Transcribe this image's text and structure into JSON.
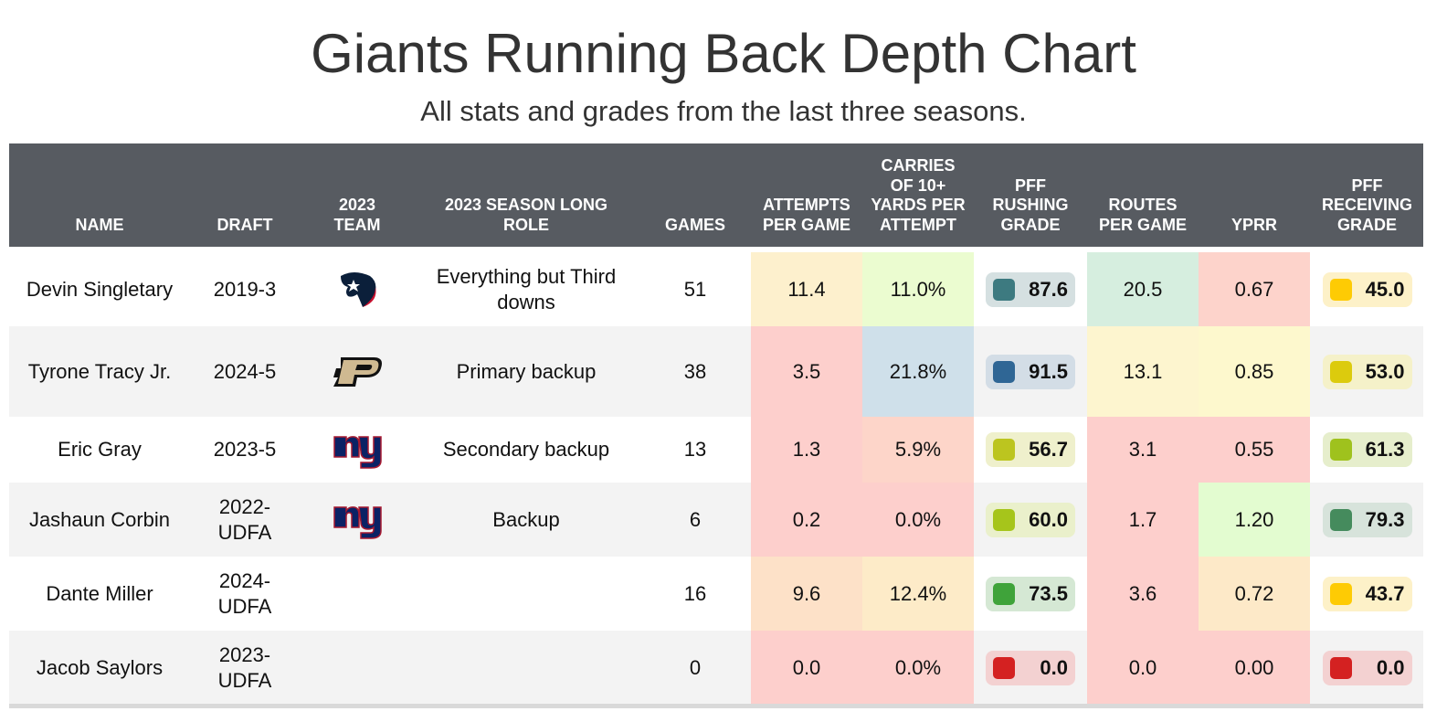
{
  "title": "Giants Running Back Depth Chart",
  "subtitle": "All stats and grades from the last three seasons.",
  "chart_data": {
    "type": "table",
    "columns": [
      "NAME",
      "DRAFT",
      "2023 TEAM",
      "2023 SEASON LONG ROLE",
      "GAMES",
      "ATTEMPTS PER GAME",
      "CARRIES OF 10+ YARDS PER ATTEMPT",
      "PFF RUSHING GRADE",
      "ROUTES PER GAME",
      "YPRR",
      "PFF RECEIVING GRADE"
    ],
    "rows": [
      {
        "name": "Devin Singletary",
        "draft": "2019-3",
        "team": "texans-logo",
        "role": "Everything but Third downs",
        "games": "51",
        "att": "11.4",
        "carries": "11.0%",
        "rush": "87.6",
        "routes": "20.5",
        "yprr": "0.67",
        "recv": "45.0"
      },
      {
        "name": "Tyrone Tracy Jr.",
        "draft": "2024-5",
        "team": "purdue-logo",
        "role": "Primary backup",
        "games": "38",
        "att": "3.5",
        "carries": "21.8%",
        "rush": "91.5",
        "routes": "13.1",
        "yprr": "0.85",
        "recv": "53.0"
      },
      {
        "name": "Eric Gray",
        "draft": "2023-5",
        "team": "giants-logo",
        "role": "Secondary backup",
        "games": "13",
        "att": "1.3",
        "carries": "5.9%",
        "rush": "56.7",
        "routes": "3.1",
        "yprr": "0.55",
        "recv": "61.3"
      },
      {
        "name": "Jashaun Corbin",
        "draft": "2022-UDFA",
        "team": "giants-logo",
        "role": "Backup",
        "games": "6",
        "att": "0.2",
        "carries": "0.0%",
        "rush": "60.0",
        "routes": "1.7",
        "yprr": "1.20",
        "recv": "79.3"
      },
      {
        "name": "Dante Miller",
        "draft": "2024-UDFA",
        "team": "",
        "role": "",
        "games": "16",
        "att": "9.6",
        "carries": "12.4%",
        "rush": "73.5",
        "routes": "3.6",
        "yprr": "0.72",
        "recv": "43.7"
      },
      {
        "name": "Jacob Saylors",
        "draft": "2023-UDFA",
        "team": "",
        "role": "",
        "games": "0",
        "att": "0.0",
        "carries": "0.0%",
        "rush": "0.0",
        "routes": "0.0",
        "yprr": "0.00",
        "recv": "0.0"
      }
    ]
  },
  "colors": {
    "header_bg": "#575b61",
    "row_alt": "#f3f3f3",
    "att": [
      "#fdf0cd",
      "#fdcfcc",
      "#fdcfcc",
      "#fdcfcc",
      "#fde1c8",
      "#fdcfcc"
    ],
    "carries": [
      "#ebfcd0",
      "#cfe0ea",
      "#fdd5c9",
      "#fdcfcc",
      "#fdebc8",
      "#fdcfcc"
    ],
    "routes": [
      "#d6eedf",
      "#fdf5cf",
      "#fdcfcc",
      "#fdcfcc",
      "#fdcfcc",
      "#fdcfcc"
    ],
    "yprr": [
      "#fdd3cb",
      "#fdf8cd",
      "#fdcfcc",
      "#e3fcd0",
      "#fde9c8",
      "#fdcfcc"
    ],
    "rush_sq": [
      "#3d7a80",
      "#2f6695",
      "#bcc51f",
      "#a6c51b",
      "#3fa33a",
      "#d42121"
    ],
    "rush_bg": [
      "#d5e0e1",
      "#d3dde6",
      "#eff0cc",
      "#eaf0cb",
      "#d5e8d4",
      "#f3d1d1"
    ],
    "recv_sq": [
      "#fecb04",
      "#dccb0d",
      "#9fc21d",
      "#458b5d",
      "#fecb04",
      "#d42121"
    ],
    "recv_bg": [
      "#fdf1c8",
      "#f5f1c9",
      "#e6eecc",
      "#d7e3db",
      "#fdf1c8",
      "#f3d1d1"
    ]
  }
}
